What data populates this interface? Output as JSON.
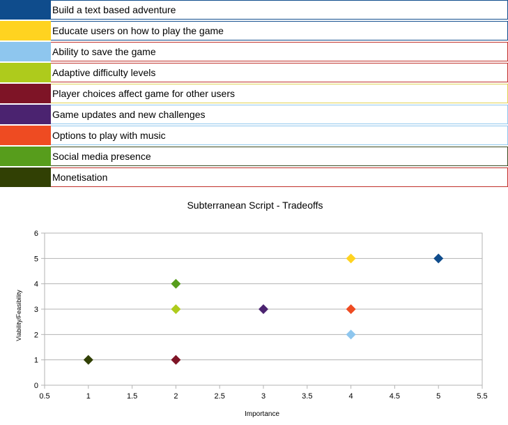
{
  "legend": {
    "items": [
      {
        "label": "Build a text based adventure",
        "color": "#0f4c8c",
        "line": "#0f4c8c"
      },
      {
        "label": "Educate users on how to play the game",
        "color": "#ffd320",
        "line": "#0f4c8c"
      },
      {
        "label": "Ability to save the game",
        "color": "#8ec6ee",
        "line": "#c0302a"
      },
      {
        "label": "Adaptive difficulty levels",
        "color": "#aecb1c",
        "line": "#c0302a"
      },
      {
        "label": "Player choices affect game for other users",
        "color": "#7e1426",
        "line": "#e0d050"
      },
      {
        "label": "Game updates and new challenges",
        "color": "#4b2370",
        "line": "#8ec6ee"
      },
      {
        "label": "Options to play with music",
        "color": "#ee4b22",
        "line": "#8ec6ee"
      },
      {
        "label": "Social media presence",
        "color": "#579d1c",
        "line": "#3a4a20"
      },
      {
        "label": "Monetisation",
        "color": "#314004",
        "line": "#c0302a"
      }
    ]
  },
  "chart_data": {
    "type": "scatter",
    "title": "Subterranean Script - Tradeoffs",
    "xlabel": "Importance",
    "ylabel": "Viability/Feasibility",
    "xlim": [
      0.5,
      5.5
    ],
    "ylim": [
      0,
      6
    ],
    "xticks": [
      "0.5",
      "1",
      "1.5",
      "2",
      "2.5",
      "3",
      "3.5",
      "4",
      "4.5",
      "5",
      "5.5"
    ],
    "yticks": [
      "0",
      "1",
      "2",
      "3",
      "4",
      "5",
      "6"
    ],
    "grid": "horizontal",
    "marker": "diamond",
    "series": [
      {
        "name": "Build a text based adventure",
        "color": "#0f4c8c",
        "x": 5,
        "y": 5
      },
      {
        "name": "Educate users on how to play the game",
        "color": "#ffd320",
        "x": 4,
        "y": 5
      },
      {
        "name": "Ability to save the game",
        "color": "#8ec6ee",
        "x": 4,
        "y": 2
      },
      {
        "name": "Adaptive difficulty levels",
        "color": "#aecb1c",
        "x": 2,
        "y": 3
      },
      {
        "name": "Player choices affect game for other users",
        "color": "#7e1426",
        "x": 2,
        "y": 1
      },
      {
        "name": "Game updates and new challenges",
        "color": "#4b2370",
        "x": 3,
        "y": 3
      },
      {
        "name": "Options to play with music",
        "color": "#ee4b22",
        "x": 4,
        "y": 3
      },
      {
        "name": "Social media presence",
        "color": "#579d1c",
        "x": 2,
        "y": 4
      },
      {
        "name": "Monetisation",
        "color": "#314004",
        "x": 1,
        "y": 1
      }
    ]
  }
}
